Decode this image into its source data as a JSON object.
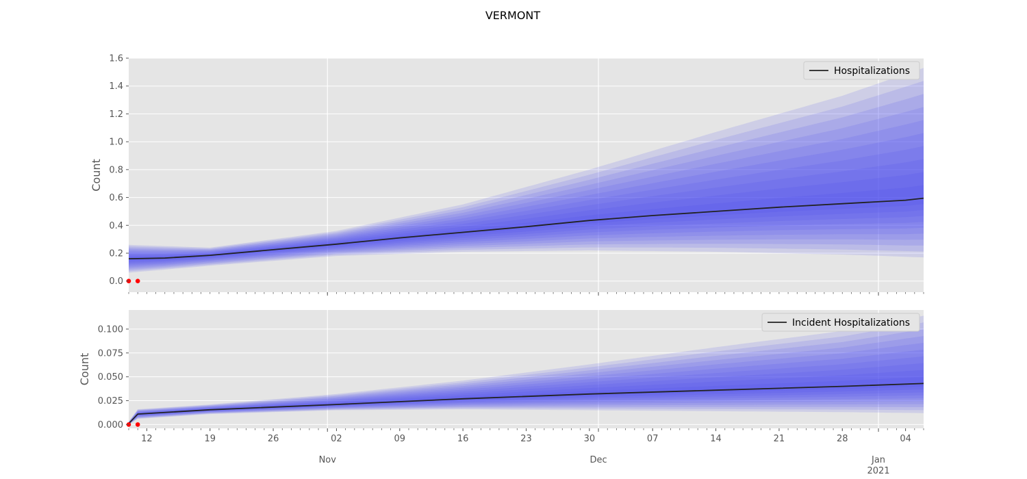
{
  "figure": {
    "title": "VERMONT"
  },
  "x_axis": {
    "start": "2020-10-10",
    "end": "2021-01-06",
    "day_ticks": [
      {
        "date": "2020-10-12",
        "label": "12"
      },
      {
        "date": "2020-10-19",
        "label": "19"
      },
      {
        "date": "2020-10-26",
        "label": "26"
      },
      {
        "date": "2020-11-02",
        "label": "02"
      },
      {
        "date": "2020-11-09",
        "label": "09"
      },
      {
        "date": "2020-11-16",
        "label": "16"
      },
      {
        "date": "2020-11-23",
        "label": "23"
      },
      {
        "date": "2020-11-30",
        "label": "30"
      },
      {
        "date": "2020-12-07",
        "label": "07"
      },
      {
        "date": "2020-12-14",
        "label": "14"
      },
      {
        "date": "2020-12-21",
        "label": "21"
      },
      {
        "date": "2020-12-28",
        "label": "28"
      },
      {
        "date": "2021-01-04",
        "label": "04"
      }
    ],
    "month_ticks": [
      {
        "date": "2020-11-01",
        "label": "Nov",
        "sublabel": ""
      },
      {
        "date": "2020-12-01",
        "label": "Dec",
        "sublabel": ""
      },
      {
        "date": "2021-01-01",
        "label": "Jan",
        "sublabel": "2021"
      }
    ]
  },
  "chart_data": [
    {
      "type": "line",
      "title": "",
      "ylabel": "Count",
      "xlabel": "",
      "ylim": [
        -0.08,
        1.6
      ],
      "yticks": [
        0.0,
        0.2,
        0.4,
        0.6,
        0.8,
        1.0,
        1.2,
        1.4,
        1.6
      ],
      "ytick_labels": [
        "0.0",
        "0.2",
        "0.4",
        "0.6",
        "0.8",
        "1.0",
        "1.2",
        "1.4",
        "1.6"
      ],
      "grid": true,
      "legend_position": "top-right",
      "series": [
        {
          "name": "Hospitalizations",
          "x": [
            "2020-10-10",
            "2020-10-14",
            "2020-10-19",
            "2020-10-26",
            "2020-11-02",
            "2020-11-09",
            "2020-11-16",
            "2020-11-23",
            "2020-11-30",
            "2020-12-07",
            "2020-12-14",
            "2020-12-21",
            "2020-12-28",
            "2021-01-04",
            "2021-01-06"
          ],
          "y": [
            0.16,
            0.165,
            0.185,
            0.225,
            0.265,
            0.31,
            0.35,
            0.39,
            0.435,
            0.47,
            0.5,
            0.53,
            0.555,
            0.58,
            0.595
          ],
          "color": "#222222"
        }
      ],
      "uncertainty_bands": {
        "x": [
          "2020-10-10",
          "2020-10-19",
          "2020-11-02",
          "2020-11-16",
          "2020-11-30",
          "2020-12-14",
          "2020-12-28",
          "2021-01-06"
        ],
        "outer_lower": [
          0.06,
          0.11,
          0.18,
          0.21,
          0.22,
          0.21,
          0.19,
          0.17
        ],
        "outer_upper": [
          0.26,
          0.24,
          0.36,
          0.55,
          0.8,
          1.07,
          1.33,
          1.53
        ],
        "levels": 10,
        "color": "#4a4af0"
      },
      "observed": {
        "x": [
          "2020-10-10",
          "2020-10-11"
        ],
        "y": [
          0.0,
          0.0
        ],
        "color": "#ff0000"
      }
    },
    {
      "type": "line",
      "title": "",
      "ylabel": "Count",
      "xlabel": "",
      "ylim": [
        -0.004,
        0.12
      ],
      "yticks": [
        0.0,
        0.025,
        0.05,
        0.075,
        0.1
      ],
      "ytick_labels": [
        "0.000",
        "0.025",
        "0.050",
        "0.075",
        "0.100"
      ],
      "grid": true,
      "legend_position": "top-right",
      "series": [
        {
          "name": "Incident Hospitalizations",
          "x": [
            "2020-10-10",
            "2020-10-11",
            "2020-10-19",
            "2020-11-02",
            "2020-11-16",
            "2020-11-30",
            "2020-12-14",
            "2020-12-28",
            "2021-01-06"
          ],
          "y": [
            0.001,
            0.011,
            0.0155,
            0.021,
            0.027,
            0.032,
            0.036,
            0.04,
            0.043
          ],
          "color": "#222222"
        }
      ],
      "uncertainty_bands": {
        "x": [
          "2020-10-10",
          "2020-10-11",
          "2020-10-19",
          "2020-11-02",
          "2020-11-16",
          "2020-11-30",
          "2020-12-14",
          "2020-12-28",
          "2021-01-06"
        ],
        "outer_lower": [
          0.0,
          0.006,
          0.011,
          0.015,
          0.016,
          0.015,
          0.014,
          0.013,
          0.012
        ],
        "outer_upper": [
          0.003,
          0.016,
          0.021,
          0.032,
          0.046,
          0.063,
          0.081,
          0.098,
          0.114
        ],
        "levels": 10,
        "color": "#4a4af0"
      },
      "observed": {
        "x": [
          "2020-10-10",
          "2020-10-11"
        ],
        "y": [
          0.0,
          0.0
        ],
        "color": "#ff0000"
      }
    }
  ]
}
